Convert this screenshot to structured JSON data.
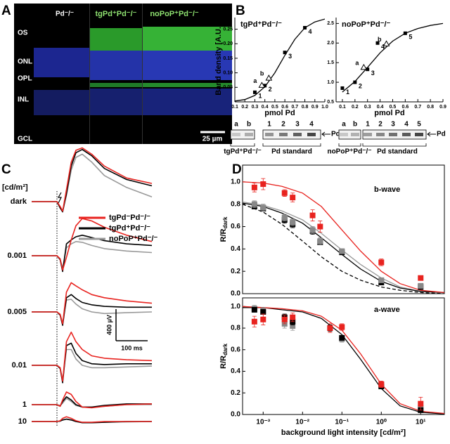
{
  "panel_labels": [
    "A",
    "B",
    "C",
    "D"
  ],
  "histology": {
    "columns": [
      "Pd⁻/⁻",
      "tgPd⁺Pd⁻/⁻",
      "noPoP⁺Pd⁻/⁻"
    ],
    "layers": [
      "OS",
      "ONL",
      "OPL",
      "INL",
      "GCL"
    ],
    "scale_bar": "25 µm"
  },
  "blots": [
    {
      "lanes": [
        "a",
        "b",
        "1",
        "2",
        "3",
        "4"
      ],
      "arrow": "Pd",
      "groups": [
        "tgPd⁺Pd⁻/⁻",
        "Pd standard"
      ]
    },
    {
      "lanes": [
        "a",
        "b",
        "1",
        "2",
        "3",
        "4",
        "5"
      ],
      "arrow": "Pd",
      "groups": [
        "noPoP⁺Pd⁻/⁻",
        "Pd standard"
      ]
    }
  ],
  "chart_data": [
    {
      "type": "scatter",
      "title": "tgPd⁺Pd⁻/⁻",
      "x_label": "pmol Pd",
      "y_label": "Band density [A.U.]",
      "xlim": [
        0.1,
        1.0
      ],
      "ylim": [
        0,
        0.29
      ],
      "xticks": [
        0.1,
        0.2,
        0.3,
        0.4,
        0.5,
        0.6,
        0.7,
        0.8,
        0.9,
        {
          "value": 1,
          "label": "1.0"
        }
      ],
      "yticks": [
        0.05,
        {
          "value": 0.1,
          "label": "0.10"
        },
        0.15,
        {
          "value": 0.2,
          "label": "0.20"
        },
        0.25
      ],
      "series": [
        {
          "marker": "line",
          "color": "#000000",
          "x": [
            0.1,
            0.2,
            0.3,
            0.4,
            0.5,
            0.6,
            0.7,
            0.8,
            0.9,
            1.0
          ],
          "values": [
            0.003,
            0.008,
            0.022,
            0.052,
            0.1,
            0.16,
            0.215,
            0.255,
            0.275,
            0.285
          ]
        },
        {
          "marker": "square",
          "color": "#000000",
          "x": [
            0.3,
            0.4,
            0.6,
            0.8
          ],
          "values": [
            0.033,
            0.056,
            0.17,
            0.255
          ],
          "labels": [
            "1",
            "2",
            "3",
            "4"
          ]
        },
        {
          "marker": "triangle",
          "color": "#000000",
          "x": [
            0.37,
            0.44
          ],
          "values": [
            0.057,
            0.082
          ],
          "labels": [
            "a",
            "b"
          ]
        }
      ]
    },
    {
      "type": "scatter",
      "title": "noPoP⁺Pd⁻/⁻",
      "x_label": "pmol Pd",
      "xlim": [
        0.05,
        0.9
      ],
      "ylim": [
        0.5,
        2.65
      ],
      "xticks": [
        0.1,
        0.2,
        0.3,
        0.4,
        0.5,
        0.6,
        0.7,
        0.8,
        0.9
      ],
      "yticks": [
        0.5,
        {
          "value": 1,
          "label": "1.0"
        },
        1.5,
        {
          "value": 2,
          "label": "2.0"
        },
        2.5
      ],
      "series": [
        {
          "marker": "line",
          "color": "#000000",
          "x": [
            0.1,
            0.2,
            0.3,
            0.4,
            0.5,
            0.6,
            0.7,
            0.8,
            0.9
          ],
          "values": [
            0.75,
            1.02,
            1.38,
            1.75,
            2.05,
            2.25,
            2.37,
            2.45,
            2.5
          ]
        },
        {
          "marker": "square",
          "color": "#000000",
          "x": [
            0.1,
            0.2,
            0.3,
            0.38,
            0.6
          ],
          "values": [
            0.85,
            1.0,
            1.33,
            2.0,
            2.25
          ],
          "labels": [
            "1",
            "2",
            "3",
            "4",
            "5"
          ]
        },
        {
          "marker": "triangle",
          "color": "#000000",
          "x": [
            0.27,
            0.45
          ],
          "values": [
            1.38,
            1.98
          ],
          "labels": [
            "a",
            "b"
          ]
        }
      ]
    },
    {
      "type": "traces",
      "unit_label": "[cd/m²]",
      "x": [
        -80,
        0,
        10,
        18,
        30,
        45,
        60,
        80,
        110,
        150,
        220,
        300
      ],
      "series": [
        {
          "name": "tgPd⁻Pd⁻/⁻",
          "color": "#e8231f"
        },
        {
          "name": "tgPd⁺Pd⁻/⁻",
          "color": "#000000"
        },
        {
          "name": "noPoP⁺Pd⁻/⁻",
          "color": "#999999"
        }
      ],
      "rows": [
        {
          "label": "dark",
          "values": [
            [
              0,
              0,
              -60,
              -120,
              150,
              500,
              650,
              680,
              600,
              450,
              300,
              230
            ],
            [
              0,
              0,
              -80,
              -130,
              100,
              450,
              620,
              660,
              580,
              420,
              280,
              200
            ],
            [
              0,
              0,
              -70,
              -110,
              80,
              400,
              560,
              600,
              500,
              330,
              180,
              60
            ]
          ]
        },
        {
          "label": "0.001",
          "values": [
            [
              0,
              0,
              -40,
              -180,
              -20,
              200,
              380,
              470,
              440,
              360,
              260,
              180
            ],
            [
              0,
              0,
              -50,
              -200,
              150,
              200,
              240,
              260,
              230,
              190,
              150,
              130
            ],
            [
              0,
              0,
              -40,
              -160,
              100,
              150,
              180,
              170,
              130,
              90,
              60,
              40
            ]
          ]
        },
        {
          "label": "0.005",
          "values": [
            [
              0,
              0,
              -30,
              -150,
              250,
              370,
              330,
              280,
              220,
              180,
              140,
              110
            ],
            [
              0,
              0,
              -40,
              -170,
              180,
              220,
              170,
              120,
              90,
              70,
              60,
              60
            ],
            [
              0,
              0,
              -30,
              -140,
              150,
              160,
              100,
              40,
              0,
              -20,
              -10,
              0
            ]
          ]
        },
        {
          "label": "0.01",
          "values": [
            [
              0,
              0,
              -30,
              -200,
              300,
              420,
              300,
              200,
              120,
              90,
              70,
              60
            ],
            [
              0,
              0,
              -40,
              -220,
              250,
              280,
              150,
              60,
              20,
              10,
              20,
              20
            ],
            [
              0,
              0,
              -30,
              -180,
              200,
              200,
              80,
              0,
              -30,
              -30,
              -20,
              -10
            ]
          ]
        },
        {
          "label": "1",
          "values": [
            [
              0,
              0,
              -20,
              60,
              160,
              130,
              40,
              -30,
              -40,
              -20,
              0,
              10
            ],
            [
              0,
              0,
              -20,
              40,
              100,
              60,
              0,
              -30,
              -30,
              -10,
              10,
              10
            ],
            [
              0,
              0,
              -10,
              20,
              80,
              40,
              -10,
              -30,
              -30,
              -20,
              0,
              0
            ]
          ]
        },
        {
          "label": "10",
          "values": [
            [
              0,
              0,
              10,
              40,
              60,
              40,
              10,
              -10,
              -10,
              0,
              0,
              0
            ],
            [
              0,
              0,
              5,
              20,
              30,
              20,
              0,
              -15,
              -15,
              -10,
              0,
              0
            ],
            [
              0,
              0,
              5,
              20,
              30,
              20,
              0,
              -10,
              -15,
              -10,
              -5,
              0
            ]
          ]
        }
      ],
      "scale_bar": {
        "y": {
          "value": 400,
          "label": "400 µV"
        },
        "x": {
          "value": 100,
          "label": "100 ms"
        }
      }
    },
    {
      "type": "scatter",
      "log_x": true,
      "title": "b-wave",
      "y_label": "R/R",
      "y_label_sub": "dark",
      "xlim": [
        0.0003,
        40
      ],
      "ylim": [
        0,
        1.15
      ],
      "yticks": [
        {
          "value": 0,
          "label": "0.0"
        },
        0.2,
        0.4,
        0.6,
        0.8,
        {
          "value": 1,
          "label": "1.0"
        }
      ],
      "series": [
        {
          "marker": "line",
          "color": "#999999",
          "x": [
            0.0003,
            0.001,
            0.003,
            0.01,
            0.03,
            0.1,
            0.3,
            1,
            3,
            10,
            40
          ],
          "values": [
            0.82,
            0.79,
            0.74,
            0.66,
            0.54,
            0.39,
            0.26,
            0.14,
            0.06,
            0.02,
            0.01
          ]
        },
        {
          "marker": "line",
          "color": "#000000",
          "x": [
            0.0003,
            0.001,
            0.003,
            0.01,
            0.03,
            0.1,
            0.3,
            1,
            3,
            10,
            40
          ],
          "values": [
            0.81,
            0.78,
            0.72,
            0.63,
            0.5,
            0.35,
            0.22,
            0.11,
            0.05,
            0.02,
            0.01
          ]
        },
        {
          "marker": "line",
          "dash": true,
          "color": "#000000",
          "x": [
            0.0003,
            0.001,
            0.003,
            0.01,
            0.03,
            0.1,
            0.3,
            1,
            3,
            10,
            40
          ],
          "values": [
            0.8,
            0.73,
            0.62,
            0.47,
            0.33,
            0.2,
            0.12,
            0.06,
            0.03,
            0.01,
            0.0
          ]
        },
        {
          "marker": "line",
          "color": "#e8231f",
          "x": [
            0.0003,
            0.001,
            0.003,
            0.01,
            0.03,
            0.1,
            0.3,
            1,
            3,
            10,
            40
          ],
          "values": [
            1.0,
            0.99,
            0.96,
            0.9,
            0.78,
            0.57,
            0.38,
            0.2,
            0.09,
            0.03,
            0.01
          ]
        },
        {
          "marker": "square",
          "color": "#000000",
          "x": [
            0.0006,
            0.001,
            0.0035,
            0.0056,
            0.018,
            0.028,
            0.1,
            1,
            10
          ],
          "values": [
            0.78,
            0.76,
            0.66,
            0.62,
            0.56,
            0.46,
            0.37,
            0.1,
            0.06
          ],
          "errors": [
            0.02,
            0.02,
            0.03,
            0.03,
            0.03,
            0.02,
            0.02,
            0.02,
            0.02
          ]
        },
        {
          "marker": "square",
          "color": "#888888",
          "x": [
            0.0006,
            0.001,
            0.0035,
            0.0056,
            0.018,
            0.028,
            0.1,
            1,
            10
          ],
          "values": [
            0.8,
            0.77,
            0.68,
            0.64,
            0.57,
            0.47,
            0.38,
            0.12,
            0.07
          ],
          "errors": [
            0.03,
            0.03,
            0.03,
            0.03,
            0.03,
            0.03,
            0.02,
            0.02,
            0.02
          ]
        },
        {
          "marker": "square",
          "color": "#e8231f",
          "x": [
            0.0006,
            0.001,
            0.0035,
            0.0056,
            0.018,
            0.028,
            1,
            10
          ],
          "values": [
            0.95,
            0.98,
            0.9,
            0.86,
            0.7,
            0.6,
            0.28,
            0.14
          ],
          "errors": [
            0.04,
            0.05,
            0.03,
            0.04,
            0.05,
            0.05,
            0.03,
            0.02
          ]
        }
      ]
    },
    {
      "type": "scatter",
      "log_x": true,
      "title": "a-wave",
      "y_label": "R/R",
      "y_label_sub": "dark",
      "x_label": "background light intensity [cd/m²]",
      "xlim": [
        0.0003,
        40
      ],
      "ylim": [
        0,
        1.08
      ],
      "xticks": [
        {
          "value": 0.001,
          "label": "10⁻³"
        },
        {
          "value": 0.01,
          "label": "10⁻²"
        },
        {
          "value": 0.1,
          "label": "10⁻¹"
        },
        {
          "value": 1,
          "label": "10⁰"
        },
        {
          "value": 10,
          "label": "10¹"
        }
      ],
      "yticks": [
        {
          "value": 0,
          "label": "0.0"
        },
        0.2,
        0.4,
        0.6,
        0.8,
        {
          "value": 1,
          "label": "1.0"
        }
      ],
      "series": [
        {
          "marker": "line",
          "color": "#000000",
          "x": [
            0.0003,
            0.001,
            0.003,
            0.01,
            0.03,
            0.1,
            0.3,
            1,
            3,
            10,
            40
          ],
          "values": [
            0.99,
            0.99,
            0.97,
            0.95,
            0.89,
            0.74,
            0.51,
            0.24,
            0.08,
            0.02,
            0.005
          ]
        },
        {
          "marker": "line",
          "color": "#e8231f",
          "x": [
            0.0003,
            0.001,
            0.003,
            0.01,
            0.03,
            0.1,
            0.3,
            1,
            3,
            10,
            40
          ],
          "values": [
            1.0,
            0.99,
            0.98,
            0.96,
            0.91,
            0.78,
            0.56,
            0.28,
            0.1,
            0.03,
            0.01
          ]
        },
        {
          "marker": "square",
          "color": "#888888",
          "x": [
            0.0006,
            0.001,
            0.0035,
            0.0056,
            0.05,
            0.1,
            1,
            10
          ],
          "values": [
            0.98,
            0.96,
            0.84,
            0.82,
            0.8,
            0.7,
            0.28,
            0.06
          ],
          "errors": [
            0.03,
            0.03,
            0.04,
            0.04,
            0.03,
            0.03,
            0.02,
            0.02
          ]
        },
        {
          "marker": "square",
          "color": "#000000",
          "x": [
            0.0006,
            0.001,
            0.0035,
            0.0056,
            0.05,
            0.1,
            1,
            10
          ],
          "values": [
            0.97,
            0.95,
            0.9,
            0.86,
            0.8,
            0.71,
            0.26,
            0.04
          ],
          "errors": [
            0.02,
            0.02,
            0.03,
            0.03,
            0.03,
            0.02,
            0.02,
            0.02
          ]
        },
        {
          "marker": "square",
          "color": "#e8231f",
          "x": [
            0.0006,
            0.001,
            0.0035,
            0.0056,
            0.05,
            0.1,
            1,
            10
          ],
          "values": [
            0.86,
            0.88,
            0.88,
            0.9,
            0.8,
            0.81,
            0.28,
            0.1
          ],
          "errors": [
            0.05,
            0.05,
            0.04,
            0.04,
            0.04,
            0.03,
            0.03,
            0.06
          ]
        }
      ]
    }
  ]
}
